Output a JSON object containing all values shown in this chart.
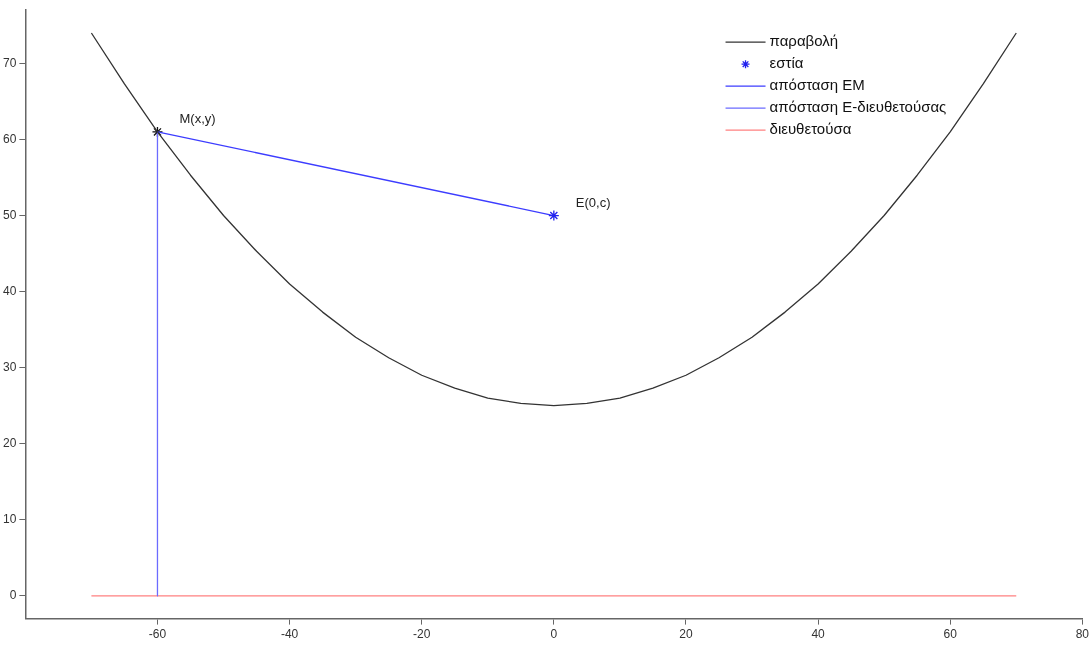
{
  "chart_data": {
    "type": "line",
    "xlim": [
      -80,
      80
    ],
    "ylim": [
      -3,
      77
    ],
    "xticks": [
      -60,
      -40,
      -20,
      0,
      20,
      40,
      60,
      80
    ],
    "yticks": [
      0,
      10,
      20,
      30,
      40,
      50,
      60,
      70
    ],
    "grid": false,
    "legend": "top right",
    "annotations": [
      {
        "text": "M(x,y)",
        "x": -60,
        "y": 61
      },
      {
        "text": "E(0,c)",
        "x": 0,
        "y": 50
      }
    ],
    "series": [
      {
        "name": "παραβολή",
        "color": "#333333",
        "marker": "none",
        "x": [
          -70,
          -65,
          -60,
          -55,
          -50,
          -45,
          -40,
          -35,
          -30,
          -25,
          -20,
          -15,
          -10,
          -5,
          0,
          5,
          10,
          15,
          20,
          25,
          30,
          35,
          40,
          45,
          50,
          55,
          60,
          65,
          70
        ],
        "values": [
          74,
          67.3,
          61,
          55.3,
          50,
          45.3,
          41,
          37.3,
          34,
          31.3,
          29,
          27.3,
          26,
          25.3,
          25,
          25.3,
          26,
          27.3,
          29,
          31.3,
          34,
          37.3,
          41,
          45.3,
          50,
          55.3,
          61,
          67.3,
          74
        ]
      },
      {
        "name": "εστία",
        "type": "scatter",
        "color": "#2222ee",
        "marker": "cross",
        "x": [
          0
        ],
        "values": [
          50
        ]
      },
      {
        "name": "απόσταση ΕΜ",
        "type": "line",
        "color": "#3c3cff",
        "marker": "none",
        "x": [
          -60,
          0
        ],
        "values": [
          61,
          50
        ]
      },
      {
        "name": "απόσταση Ε-διευθετούσας",
        "type": "line",
        "color": "#6b6bff",
        "marker": "none",
        "x": [
          -60,
          -60
        ],
        "values": [
          61,
          0
        ]
      },
      {
        "name": "διευθετούσα",
        "type": "line",
        "color": "#ff8080",
        "marker": "none",
        "x": [
          -70,
          70
        ],
        "values": [
          0,
          0
        ]
      },
      {
        "type": "scatter",
        "color": "#111111",
        "marker": "cross",
        "x": [
          -60
        ],
        "values": [
          61
        ]
      }
    ]
  }
}
